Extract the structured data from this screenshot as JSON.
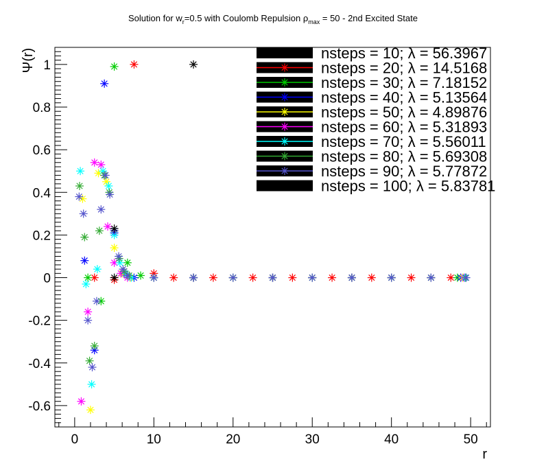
{
  "chart_data": {
    "type": "scatter",
    "title": "Solution for w",
    "title_sub": "r",
    "title_mid": "=0.5 with Coulomb Repulsion ρ",
    "title_sub2": "max",
    "title_end": " = 50 - 2nd Excited State",
    "xlabel": "r",
    "ylabel": "Ψ(r)",
    "xlim": [
      -2.5,
      52.5
    ],
    "ylim": [
      -0.7,
      1.08
    ],
    "xticks": [
      0,
      10,
      20,
      30,
      40,
      50
    ],
    "xtick_labels": [
      "0",
      "10",
      "20",
      "30",
      "40",
      "50"
    ],
    "yticks": [
      -0.6,
      -0.4,
      -0.2,
      0,
      0.2,
      0.4,
      0.6,
      0.8,
      1
    ],
    "ytick_labels": [
      "-0.6",
      "-0.4",
      "-0.2",
      "0",
      "0.2",
      "0.4",
      "0.6",
      "0.8",
      "1"
    ],
    "legend_position": "top-right",
    "series": [
      {
        "name": "nsteps = 10; λ = 56.3967",
        "color": "#000000",
        "marker": "box",
        "points": []
      },
      {
        "name": "nsteps = 20; λ = 14.5168",
        "color": "#ff0000",
        "marker": "star",
        "points": [
          [
            2.5,
            0.0
          ],
          [
            5.0,
            -0.01
          ],
          [
            7.5,
            1.0
          ],
          [
            10.0,
            0.02
          ],
          [
            12.5,
            0.0
          ],
          [
            15.0,
            0.0
          ],
          [
            17.5,
            0.0
          ],
          [
            20.0,
            0.0
          ],
          [
            22.5,
            0.0
          ],
          [
            25.0,
            0.0
          ],
          [
            27.5,
            0.0
          ],
          [
            30.0,
            0.0
          ],
          [
            32.5,
            0.0
          ],
          [
            35.0,
            0.0
          ],
          [
            37.5,
            0.0
          ],
          [
            40.0,
            0.0
          ],
          [
            42.5,
            0.0
          ],
          [
            45.0,
            0.0
          ],
          [
            47.5,
            0.0
          ]
        ]
      },
      {
        "name": "nsteps = 30; λ = 7.18152",
        "color": "#00cc00",
        "marker": "star",
        "points": [
          [
            1.67,
            0.0
          ],
          [
            3.33,
            -0.11
          ],
          [
            5.0,
            0.99
          ],
          [
            6.67,
            0.07
          ],
          [
            8.33,
            0.01
          ],
          [
            10.0,
            0.0
          ],
          [
            15.0,
            0.0
          ],
          [
            20.0,
            0.0
          ],
          [
            25.0,
            0.0
          ],
          [
            30.0,
            0.0
          ],
          [
            35.0,
            0.0
          ],
          [
            40.0,
            0.0
          ],
          [
            45.0,
            0.0
          ],
          [
            48.33,
            0.0
          ]
        ]
      },
      {
        "name": "nsteps = 40; λ = 5.13564",
        "color": "#0000ff",
        "marker": "star",
        "points": [
          [
            1.25,
            0.08
          ],
          [
            2.5,
            -0.34
          ],
          [
            3.75,
            0.91
          ],
          [
            5.0,
            0.21
          ],
          [
            6.25,
            0.02
          ],
          [
            7.5,
            0.0
          ],
          [
            10.0,
            0.0
          ],
          [
            15.0,
            0.0
          ],
          [
            20.0,
            0.0
          ],
          [
            25.0,
            0.0
          ],
          [
            30.0,
            0.0
          ],
          [
            35.0,
            0.0
          ],
          [
            40.0,
            0.0
          ],
          [
            45.0,
            0.0
          ],
          [
            48.75,
            0.0
          ]
        ]
      },
      {
        "name": "nsteps = 50; λ = 4.89876",
        "color": "#ffff00",
        "marker": "star",
        "points": [
          [
            1.0,
            0.37
          ],
          [
            2.0,
            -0.62
          ],
          [
            3.0,
            0.49
          ],
          [
            4.0,
            0.45
          ],
          [
            5.0,
            0.14
          ],
          [
            6.0,
            0.02
          ],
          [
            7.0,
            0.0
          ],
          [
            10.0,
            0.0
          ],
          [
            15.0,
            0.0
          ],
          [
            20.0,
            0.0
          ],
          [
            25.0,
            0.0
          ],
          [
            30.0,
            0.0
          ],
          [
            35.0,
            0.0
          ],
          [
            40.0,
            0.0
          ],
          [
            45.0,
            0.0
          ],
          [
            49.0,
            0.0
          ]
        ]
      },
      {
        "name": "nsteps = 60; λ = 5.31893",
        "color": "#ff00ff",
        "marker": "star",
        "points": [
          [
            0.83,
            -0.58
          ],
          [
            1.67,
            -0.16
          ],
          [
            2.5,
            0.54
          ],
          [
            3.33,
            0.53
          ],
          [
            4.17,
            0.24
          ],
          [
            5.0,
            0.07
          ],
          [
            5.83,
            0.02
          ],
          [
            6.67,
            0.0
          ],
          [
            10.0,
            0.0
          ],
          [
            15.0,
            0.0
          ],
          [
            20.0,
            0.0
          ],
          [
            25.0,
            0.0
          ],
          [
            30.0,
            0.0
          ],
          [
            35.0,
            0.0
          ],
          [
            40.0,
            0.0
          ],
          [
            45.0,
            0.0
          ],
          [
            49.17,
            0.0
          ]
        ]
      },
      {
        "name": "nsteps = 70; λ = 5.56011",
        "color": "#00ffff",
        "marker": "star",
        "points": [
          [
            0.71,
            0.5
          ],
          [
            1.43,
            -0.03
          ],
          [
            2.14,
            -0.5
          ],
          [
            2.86,
            0.04
          ],
          [
            3.57,
            0.5
          ],
          [
            4.29,
            0.43
          ],
          [
            5.0,
            0.2
          ],
          [
            5.71,
            0.07
          ],
          [
            6.43,
            0.02
          ],
          [
            7.14,
            0.0
          ],
          [
            10.0,
            0.0
          ],
          [
            15.0,
            0.0
          ],
          [
            20.0,
            0.0
          ],
          [
            25.0,
            0.0
          ],
          [
            30.0,
            0.0
          ],
          [
            35.0,
            0.0
          ],
          [
            40.0,
            0.0
          ],
          [
            45.0,
            0.0
          ],
          [
            49.29,
            0.0
          ]
        ]
      },
      {
        "name": "nsteps = 80; λ = 5.69308",
        "color": "#33aa33",
        "marker": "star",
        "points": [
          [
            0.62,
            0.43
          ],
          [
            1.25,
            0.19
          ],
          [
            1.88,
            -0.39
          ],
          [
            2.5,
            -0.32
          ],
          [
            3.12,
            0.22
          ],
          [
            3.75,
            0.48
          ],
          [
            4.38,
            0.4
          ],
          [
            5.0,
            0.22
          ],
          [
            5.62,
            0.09
          ],
          [
            6.25,
            0.03
          ],
          [
            6.88,
            0.01
          ],
          [
            10.0,
            0.0
          ],
          [
            15.0,
            0.0
          ],
          [
            20.0,
            0.0
          ],
          [
            25.0,
            0.0
          ],
          [
            30.0,
            0.0
          ],
          [
            35.0,
            0.0
          ],
          [
            40.0,
            0.0
          ],
          [
            45.0,
            0.0
          ],
          [
            49.38,
            0.0
          ]
        ]
      },
      {
        "name": "nsteps = 90; λ = 5.77872",
        "color": "#5555cc",
        "marker": "star",
        "points": [
          [
            0.56,
            0.38
          ],
          [
            1.11,
            0.3
          ],
          [
            1.67,
            -0.2
          ],
          [
            2.22,
            -0.42
          ],
          [
            2.78,
            -0.11
          ],
          [
            3.33,
            0.32
          ],
          [
            3.89,
            0.48
          ],
          [
            4.44,
            0.39
          ],
          [
            5.0,
            0.22
          ],
          [
            5.56,
            0.1
          ],
          [
            6.11,
            0.04
          ],
          [
            6.67,
            0.01
          ],
          [
            10.0,
            0.0
          ],
          [
            15.0,
            0.0
          ],
          [
            20.0,
            0.0
          ],
          [
            25.0,
            0.0
          ],
          [
            30.0,
            0.0
          ],
          [
            35.0,
            0.0
          ],
          [
            40.0,
            0.0
          ],
          [
            45.0,
            0.0
          ],
          [
            49.44,
            0.0
          ]
        ]
      },
      {
        "name": "nsteps = 100; λ = 5.83781",
        "color": "#000000",
        "marker": "star",
        "points": [
          [
            5.0,
            0.23
          ],
          [
            5.0,
            0.0
          ],
          [
            15.0,
            1.0
          ]
        ]
      }
    ]
  }
}
